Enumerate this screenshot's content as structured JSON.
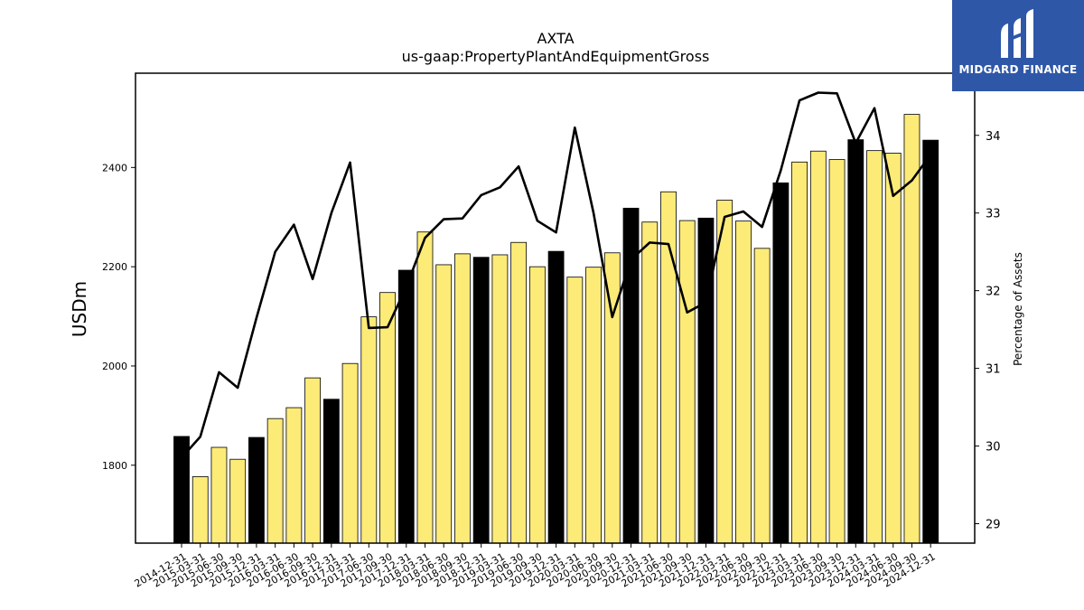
{
  "chart_data": {
    "type": "bar",
    "title": "AXTA",
    "subtitle": "us-gaap:PropertyPlantAndEquipmentGross",
    "ylabel": "USDm",
    "y2label": "Percentage of Assets",
    "ylim": [
      1643,
      2590
    ],
    "y2lim": [
      28.75,
      34.8
    ],
    "yticks": [
      1800,
      2000,
      2200,
      2400
    ],
    "y2ticks": [
      29,
      30,
      31,
      32,
      33,
      34
    ],
    "categories": [
      "2014-12-31",
      "2015-03-31",
      "2015-06-30",
      "2015-09-30",
      "2015-12-31",
      "2016-03-31",
      "2016-06-30",
      "2016-09-30",
      "2016-12-31",
      "2017-03-31",
      "2017-06-30",
      "2017-09-30",
      "2017-12-31",
      "2018-03-31",
      "2018-06-30",
      "2018-09-30",
      "2018-12-31",
      "2019-03-31",
      "2019-06-30",
      "2019-09-30",
      "2019-12-31",
      "2020-03-31",
      "2020-06-30",
      "2020-09-30",
      "2020-12-31",
      "2021-03-31",
      "2021-06-30",
      "2021-09-30",
      "2021-12-31",
      "2022-03-31",
      "2022-06-30",
      "2022-09-30",
      "2022-12-31",
      "2023-03-31",
      "2023-06-30",
      "2023-09-30",
      "2023-12-31",
      "2024-03-31",
      "2024-06-30",
      "2024-09-30",
      "2024-12-31"
    ],
    "series": [
      {
        "values": [
          1858,
          1777,
          1836,
          1812,
          1856,
          1894,
          1916,
          1976,
          1933,
          2005,
          2099,
          2148,
          2193,
          2270,
          2204,
          2226,
          2219,
          2224,
          2249,
          2200,
          2231,
          2179,
          2199,
          2228,
          2318,
          2290,
          2351,
          2293,
          2298,
          2334,
          2292,
          2237,
          2369,
          2411,
          2433,
          2416,
          2456,
          2434,
          2429,
          2507,
          2455
        ]
      },
      {
        "values": [
          29.85,
          30.12,
          30.95,
          30.75,
          31.65,
          32.5,
          32.85,
          32.15,
          33.0,
          33.65,
          31.52,
          31.53,
          32.05,
          32.68,
          32.92,
          32.93,
          33.23,
          33.33,
          33.6,
          32.9,
          32.75,
          34.1,
          33.0,
          31.66,
          32.4,
          32.62,
          32.6,
          31.72,
          31.85,
          32.95,
          33.02,
          32.82,
          33.55,
          34.45,
          34.55,
          34.54,
          33.9,
          34.35,
          33.22,
          33.42,
          33.75
        ]
      }
    ],
    "colors": {
      "annual_bar": "#000000",
      "quarter_bar": "#fdeb78",
      "bar_edge": "#000000",
      "line": "#000000"
    },
    "grid": false,
    "legend": "none"
  },
  "logo": {
    "text": "MIDGARD FINANCE",
    "bg": "#2f57a8"
  }
}
